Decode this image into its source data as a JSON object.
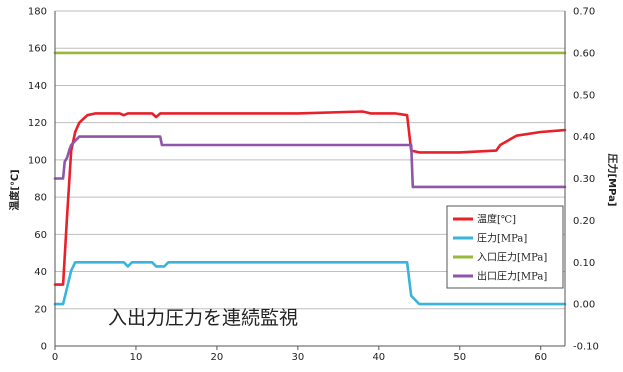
{
  "chart_data": {
    "type": "line",
    "xlim": [
      0,
      63
    ],
    "xticks": [
      0,
      10,
      20,
      30,
      40,
      50,
      60
    ],
    "y_left": {
      "label": "温度[℃]",
      "lim": [
        0,
        180
      ],
      "ticks": [
        0,
        20,
        40,
        60,
        80,
        100,
        120,
        140,
        160,
        180
      ]
    },
    "y_right": {
      "label": "圧力[MPa]",
      "lim": [
        -0.1,
        0.7
      ],
      "ticks": [
        "-0.10",
        "0.00",
        "0.10",
        "0.20",
        "0.30",
        "0.40",
        "0.50",
        "0.60",
        "0.70"
      ]
    },
    "grid": "horizontal",
    "legend_position": "right",
    "annotation": "入出力圧力を連続監視",
    "colors": {
      "temp": "#e8202a",
      "pressure": "#3ab4dc",
      "inlet": "#9ab83a",
      "outlet": "#8e55a8",
      "grid": "#bfbfbf"
    },
    "series": [
      {
        "name": "温度[℃]",
        "axis": "left",
        "x": [
          0,
          1,
          1.5,
          2,
          2.5,
          3,
          3.5,
          4,
          5,
          8,
          8.5,
          9,
          12,
          12.5,
          13,
          20,
          30,
          38,
          39,
          42,
          43.5,
          44,
          45,
          50,
          54.5,
          55,
          57,
          60,
          63
        ],
        "y": [
          33,
          33,
          70,
          105,
          115,
          120,
          122,
          124,
          125,
          125,
          124,
          125,
          125,
          123,
          125,
          125,
          125,
          126,
          125,
          125,
          124,
          105,
          104,
          104,
          105,
          108,
          113,
          115,
          116
        ]
      },
      {
        "name": "圧力[MPa]",
        "axis": "right",
        "x": [
          0,
          1,
          2,
          2.5,
          8.5,
          9,
          9.5,
          12,
          12.5,
          13.5,
          14,
          43.5,
          44,
          45,
          63
        ],
        "y": [
          0.0,
          0.0,
          0.08,
          0.1,
          0.1,
          0.09,
          0.1,
          0.1,
          0.09,
          0.09,
          0.1,
          0.1,
          0.02,
          0.0,
          0.0
        ]
      },
      {
        "name": "入口圧力[MPa]",
        "axis": "right",
        "x": [
          0,
          63
        ],
        "y": [
          0.6,
          0.6
        ]
      },
      {
        "name": "出口圧力[MPa]",
        "axis": "right",
        "x": [
          0,
          1,
          1.2,
          1.5,
          1.8,
          2,
          2.5,
          3,
          13,
          13.2,
          44,
          44.2,
          63
        ],
        "y": [
          0.3,
          0.3,
          0.34,
          0.35,
          0.37,
          0.38,
          0.39,
          0.4,
          0.4,
          0.38,
          0.38,
          0.28,
          0.28
        ]
      }
    ]
  }
}
